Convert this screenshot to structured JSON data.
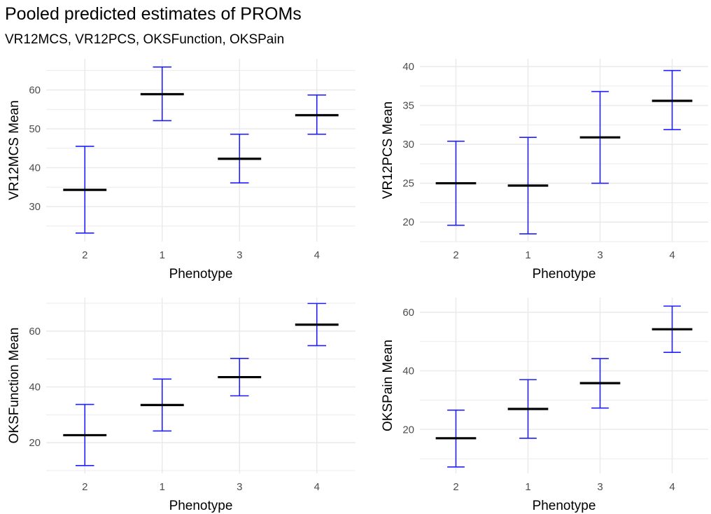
{
  "title": "Pooled predicted estimates of PROMs",
  "subtitle": "VR12MCS, VR12PCS, OKSFunction, OKSPain",
  "colors": {
    "errorbar": "#1f1fff",
    "mean": "#000000",
    "grid": "#ebebeb"
  },
  "chart_data": [
    {
      "type": "errorbar",
      "xlabel": "Phenotype",
      "ylabel": "VR12MCS Mean",
      "categories": [
        "2",
        "1",
        "3",
        "4"
      ],
      "ylim": [
        21,
        68
      ],
      "yticks": [
        30,
        40,
        50,
        60
      ],
      "grid": true,
      "points": [
        {
          "x": "2",
          "mean": 34.3,
          "lower": 23.2,
          "upper": 45.5
        },
        {
          "x": "1",
          "mean": 58.9,
          "lower": 52.1,
          "upper": 65.9
        },
        {
          "x": "3",
          "mean": 42.3,
          "lower": 36.1,
          "upper": 48.6
        },
        {
          "x": "4",
          "mean": 53.5,
          "lower": 48.6,
          "upper": 58.7
        }
      ]
    },
    {
      "type": "errorbar",
      "xlabel": "Phenotype",
      "ylabel": "VR12PCS Mean",
      "categories": [
        "2",
        "1",
        "3",
        "4"
      ],
      "ylim": [
        17.5,
        41
      ],
      "yticks": [
        20,
        25,
        30,
        35,
        40
      ],
      "grid": true,
      "points": [
        {
          "x": "2",
          "mean": 25.0,
          "lower": 19.6,
          "upper": 30.4
        },
        {
          "x": "1",
          "mean": 24.7,
          "lower": 18.5,
          "upper": 30.9
        },
        {
          "x": "3",
          "mean": 30.9,
          "lower": 25.0,
          "upper": 36.8
        },
        {
          "x": "4",
          "mean": 35.6,
          "lower": 31.9,
          "upper": 39.5
        }
      ]
    },
    {
      "type": "errorbar",
      "xlabel": "Phenotype",
      "ylabel": "OKSFunction Mean",
      "categories": [
        "2",
        "1",
        "3",
        "4"
      ],
      "ylim": [
        9,
        72
      ],
      "yticks": [
        20,
        40,
        60
      ],
      "grid": true,
      "points": [
        {
          "x": "2",
          "mean": 22.7,
          "lower": 11.8,
          "upper": 33.7
        },
        {
          "x": "1",
          "mean": 33.5,
          "lower": 24.2,
          "upper": 42.8
        },
        {
          "x": "3",
          "mean": 43.5,
          "lower": 36.8,
          "upper": 50.2
        },
        {
          "x": "4",
          "mean": 62.3,
          "lower": 54.8,
          "upper": 69.9
        }
      ]
    },
    {
      "type": "errorbar",
      "xlabel": "Phenotype",
      "ylabel": "OKSPain Mean",
      "categories": [
        "2",
        "1",
        "3",
        "4"
      ],
      "ylim": [
        5,
        65
      ],
      "yticks": [
        20,
        40,
        60
      ],
      "grid": true,
      "points": [
        {
          "x": "2",
          "mean": 17.0,
          "lower": 7.2,
          "upper": 26.6
        },
        {
          "x": "1",
          "mean": 27.0,
          "lower": 17.0,
          "upper": 37.0
        },
        {
          "x": "3",
          "mean": 35.8,
          "lower": 27.3,
          "upper": 44.2
        },
        {
          "x": "4",
          "mean": 54.2,
          "lower": 46.3,
          "upper": 62.1
        }
      ]
    }
  ]
}
